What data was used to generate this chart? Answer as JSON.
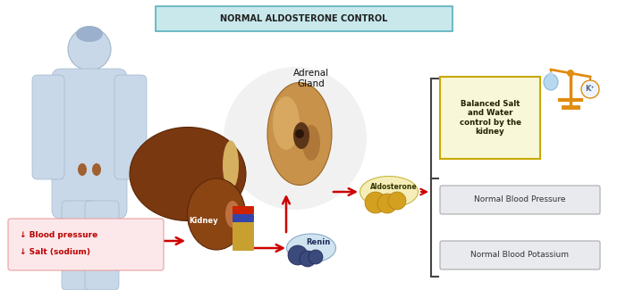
{
  "title": "NORMAL ALDOSTERONE CONTROL",
  "title_box_color": "#c8e8ec",
  "title_box_edge": "#5ab0bb",
  "bg_color": "#ffffff",
  "labels": {
    "blood_pressure": "↓ Blood pressure",
    "salt_sodium": "↓ Salt (sodium)",
    "kidney": "Kidney",
    "renin": "Renin",
    "adrenal_gland": "Adrenal\nGland",
    "aldosterone": "Aldosterone",
    "balanced": "Balanced Salt\nand Water\ncontrol by the\nkidney",
    "normal_bp": "Normal Blood Pressure",
    "normal_bk": "Normal Blood Potassium",
    "k_plus": "K⁺"
  },
  "arrow_color": "#cc0000",
  "label_bg": "#fce8ea",
  "label_edge": "#e8a0a0",
  "balanced_box_bg": "#f8f8d8",
  "balanced_box_edge": "#c8a800",
  "normal_box_bg": "#e8eaee",
  "normal_box_edge": "#aaaaaa",
  "bracket_color": "#444444",
  "human_color": "#c8d8e8",
  "human_edge": "#a0b8cc",
  "kidney_color": "#8b4513",
  "liver_color": "#7a3810",
  "adrenal_color": "#c8924a",
  "adrenal_inner": "#8b5c2a",
  "renin_bg": "#b8d0e8",
  "renin_dot": "#4a5a8a",
  "aldosterone_bg": "#f0eaaa",
  "aldosterone_dot": "#d4a030",
  "scale_color": "#e08c10",
  "water_color": "#b8d8f0",
  "k_bg": "#f0f8ff"
}
